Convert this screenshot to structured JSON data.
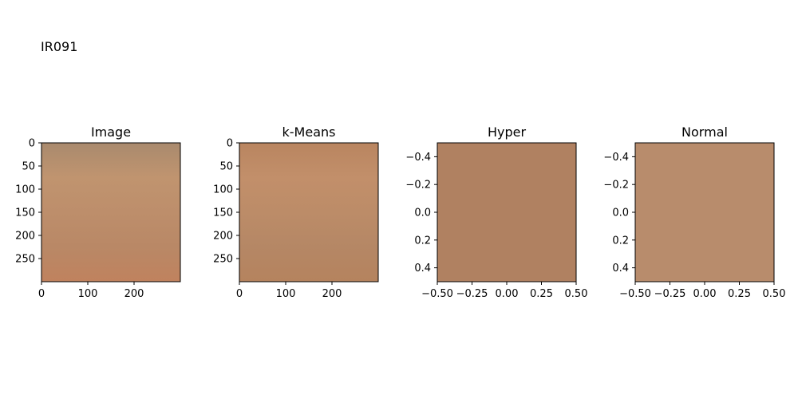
{
  "figure": {
    "suptitle": "IR091"
  },
  "chart_data": [
    {
      "type": "heatmap",
      "title": "Image",
      "xlim": [
        0,
        300
      ],
      "ylim": [
        300,
        0
      ],
      "xticks": [
        0,
        100,
        200
      ],
      "yticks": [
        0,
        50,
        100,
        150,
        200,
        250
      ],
      "xtick_labels": [
        "0",
        "100",
        "200"
      ],
      "ytick_labels": [
        "0",
        "50",
        "100",
        "150",
        "200",
        "250"
      ],
      "gradient_colors": [
        "#a98a6e",
        "#c0946f",
        "#bd8e6b",
        "#b98866",
        "#c0825e"
      ]
    },
    {
      "type": "heatmap",
      "title": "k-Means",
      "xlim": [
        0,
        300
      ],
      "ylim": [
        300,
        0
      ],
      "xticks": [
        0,
        100,
        200
      ],
      "yticks": [
        0,
        50,
        100,
        150,
        200,
        250
      ],
      "xtick_labels": [
        "0",
        "100",
        "200"
      ],
      "ytick_labels": [
        "0",
        "50",
        "100",
        "150",
        "200",
        "250"
      ],
      "gradient_colors": [
        "#b98560",
        "#c28f6a",
        "#bc8c68",
        "#b58765",
        "#b5835e"
      ]
    },
    {
      "type": "heatmap",
      "title": "Hyper",
      "xlim": [
        -0.5,
        0.5
      ],
      "ylim": [
        0.5,
        -0.5
      ],
      "xticks": [
        -0.5,
        -0.25,
        0,
        0.25,
        0.5
      ],
      "yticks": [
        -0.4,
        -0.2,
        0,
        0.2,
        0.4
      ],
      "xtick_labels": [
        "−0.50",
        "−0.25",
        "0.00",
        "0.25",
        "0.50"
      ],
      "ytick_labels": [
        "−0.4",
        "−0.2",
        "0.0",
        "0.2",
        "0.4"
      ],
      "fill_color": "#b08161"
    },
    {
      "type": "heatmap",
      "title": "Normal",
      "xlim": [
        -0.5,
        0.5
      ],
      "ylim": [
        0.5,
        -0.5
      ],
      "xticks": [
        -0.5,
        -0.25,
        0,
        0.25,
        0.5
      ],
      "yticks": [
        -0.4,
        -0.2,
        0,
        0.2,
        0.4
      ],
      "xtick_labels": [
        "−0.50",
        "−0.25",
        "0.00",
        "0.25",
        "0.50"
      ],
      "ytick_labels": [
        "−0.4",
        "−0.2",
        "0.0",
        "0.2",
        "0.4"
      ],
      "fill_color": "#b88c6c"
    }
  ]
}
